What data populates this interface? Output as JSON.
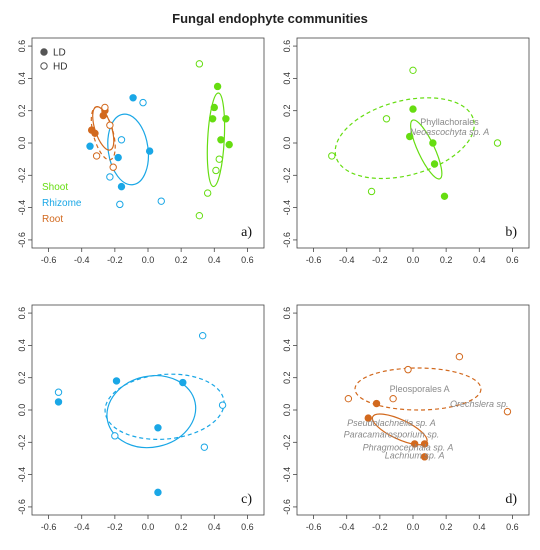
{
  "figure": {
    "title": "Fungal endophyte communities"
  },
  "colors": {
    "shoot": "#66dd11",
    "rhizome": "#1aa7e6",
    "root": "#d2691e",
    "axis": "#444444"
  },
  "chart_data": [
    {
      "type": "scatter",
      "panel_label": "a)",
      "xlim": [
        -0.7,
        0.7
      ],
      "ylim": [
        -0.65,
        0.65
      ],
      "xticks": [
        "-0.6",
        "-0.4",
        "-0.2",
        "0.0",
        "0.2",
        "0.4",
        "0.6"
      ],
      "yticks": [
        "-0.6",
        "-0.4",
        "-0.2",
        "0.0",
        "0.2",
        "0.4",
        "0.6"
      ],
      "legend": {
        "fill_labels": [
          {
            "label": "LD",
            "filled": true
          },
          {
            "label": "HD",
            "filled": false
          }
        ],
        "group_labels": [
          {
            "label": "Shoot",
            "color": "shoot"
          },
          {
            "label": "Rhizome",
            "color": "rhizome"
          },
          {
            "label": "Root",
            "color": "root"
          }
        ]
      },
      "points": [
        {
          "x": 0.42,
          "y": 0.35,
          "g": "shoot",
          "f": true
        },
        {
          "x": 0.4,
          "y": 0.22,
          "g": "shoot",
          "f": true
        },
        {
          "x": 0.47,
          "y": 0.15,
          "g": "shoot",
          "f": true
        },
        {
          "x": 0.44,
          "y": 0.02,
          "g": "shoot",
          "f": true
        },
        {
          "x": 0.49,
          "y": -0.01,
          "g": "shoot",
          "f": true
        },
        {
          "x": 0.39,
          "y": 0.15,
          "g": "shoot",
          "f": true
        },
        {
          "x": 0.31,
          "y": 0.49,
          "g": "shoot",
          "f": false
        },
        {
          "x": 0.43,
          "y": -0.1,
          "g": "shoot",
          "f": false
        },
        {
          "x": 0.41,
          "y": -0.17,
          "g": "shoot",
          "f": false
        },
        {
          "x": 0.36,
          "y": -0.31,
          "g": "shoot",
          "f": false
        },
        {
          "x": 0.31,
          "y": -0.45,
          "g": "shoot",
          "f": false
        },
        {
          "x": -0.09,
          "y": 0.28,
          "g": "rhizome",
          "f": true
        },
        {
          "x": 0.01,
          "y": -0.05,
          "g": "rhizome",
          "f": true
        },
        {
          "x": -0.18,
          "y": -0.09,
          "g": "rhizome",
          "f": true
        },
        {
          "x": -0.16,
          "y": -0.27,
          "g": "rhizome",
          "f": true
        },
        {
          "x": -0.35,
          "y": -0.02,
          "g": "rhizome",
          "f": true
        },
        {
          "x": -0.03,
          "y": 0.25,
          "g": "rhizome",
          "f": false
        },
        {
          "x": -0.16,
          "y": 0.02,
          "g": "rhizome",
          "f": false
        },
        {
          "x": -0.23,
          "y": -0.21,
          "g": "rhizome",
          "f": false
        },
        {
          "x": -0.17,
          "y": -0.38,
          "g": "rhizome",
          "f": false
        },
        {
          "x": 0.08,
          "y": -0.36,
          "g": "rhizome",
          "f": false
        },
        {
          "x": -0.26,
          "y": 0.2,
          "g": "root",
          "f": true
        },
        {
          "x": -0.27,
          "y": 0.17,
          "g": "root",
          "f": true
        },
        {
          "x": -0.34,
          "y": 0.08,
          "g": "root",
          "f": true
        },
        {
          "x": -0.32,
          "y": 0.06,
          "g": "root",
          "f": true
        },
        {
          "x": -0.23,
          "y": 0.11,
          "g": "root",
          "f": false
        },
        {
          "x": -0.26,
          "y": 0.22,
          "g": "root",
          "f": false
        },
        {
          "x": -0.21,
          "y": -0.15,
          "g": "root",
          "f": false
        },
        {
          "x": -0.31,
          "y": -0.08,
          "g": "root",
          "f": false
        }
      ],
      "ellipses": [
        {
          "cx": 0.41,
          "cy": 0.02,
          "rx": 0.05,
          "ry": 0.29,
          "rot": 3,
          "g": "shoot",
          "dashed": false
        },
        {
          "cx": -0.12,
          "cy": -0.04,
          "rx": 0.12,
          "ry": 0.22,
          "rot": -8,
          "g": "rhizome",
          "dashed": false
        },
        {
          "cx": -0.27,
          "cy": 0.09,
          "rx": 0.05,
          "ry": 0.14,
          "rot": -18,
          "g": "root",
          "dashed": false
        },
        {
          "cx": -0.27,
          "cy": 0.06,
          "rx": 0.06,
          "ry": 0.17,
          "rot": -15,
          "g": "root",
          "dashed": true
        }
      ],
      "annotations": []
    },
    {
      "type": "scatter",
      "panel_label": "b)",
      "xlim": [
        -0.7,
        0.7
      ],
      "ylim": [
        -0.65,
        0.65
      ],
      "xticks": [
        "-0.6",
        "-0.4",
        "-0.2",
        "0.0",
        "0.2",
        "0.4",
        "0.6"
      ],
      "yticks": [
        "-0.6",
        "-0.4",
        "-0.2",
        "0.0",
        "0.2",
        "0.4",
        "0.6"
      ],
      "points": [
        {
          "x": 0.0,
          "y": 0.21,
          "g": "shoot",
          "f": true
        },
        {
          "x": -0.02,
          "y": 0.04,
          "g": "shoot",
          "f": true
        },
        {
          "x": 0.12,
          "y": 0.0,
          "g": "shoot",
          "f": true
        },
        {
          "x": 0.13,
          "y": -0.13,
          "g": "shoot",
          "f": true
        },
        {
          "x": 0.19,
          "y": -0.33,
          "g": "shoot",
          "f": true
        },
        {
          "x": 0.0,
          "y": 0.45,
          "g": "shoot",
          "f": false
        },
        {
          "x": -0.16,
          "y": 0.15,
          "g": "shoot",
          "f": false
        },
        {
          "x": -0.49,
          "y": -0.08,
          "g": "shoot",
          "f": false
        },
        {
          "x": -0.25,
          "y": -0.3,
          "g": "shoot",
          "f": false
        },
        {
          "x": 0.51,
          "y": 0.0,
          "g": "shoot",
          "f": false
        }
      ],
      "ellipses": [
        {
          "cx": -0.05,
          "cy": 0.03,
          "rx": 0.43,
          "ry": 0.23,
          "rot": -15,
          "g": "shoot",
          "dashed": true
        },
        {
          "cx": 0.08,
          "cy": -0.04,
          "rx": 0.05,
          "ry": 0.2,
          "rot": -25,
          "g": "shoot",
          "dashed": false
        }
      ],
      "annotations": [
        {
          "text": "Phyllachorales",
          "x": 0.22,
          "y": 0.11,
          "italic": false
        },
        {
          "text": "Neoascochyta sp. A",
          "x": 0.22,
          "y": 0.05,
          "italic": true
        }
      ]
    },
    {
      "type": "scatter",
      "panel_label": "c)",
      "xlim": [
        -0.7,
        0.7
      ],
      "ylim": [
        -0.65,
        0.65
      ],
      "xticks": [
        "-0.6",
        "-0.4",
        "-0.2",
        "0.0",
        "0.2",
        "0.4",
        "0.6"
      ],
      "yticks": [
        "-0.6",
        "-0.4",
        "-0.2",
        "0.0",
        "0.2",
        "0.4",
        "0.6"
      ],
      "points": [
        {
          "x": -0.19,
          "y": 0.18,
          "g": "rhizome",
          "f": true
        },
        {
          "x": 0.21,
          "y": 0.17,
          "g": "rhizome",
          "f": true
        },
        {
          "x": 0.06,
          "y": -0.11,
          "g": "rhizome",
          "f": true
        },
        {
          "x": -0.54,
          "y": 0.05,
          "g": "rhizome",
          "f": true
        },
        {
          "x": 0.06,
          "y": -0.51,
          "g": "rhizome",
          "f": true
        },
        {
          "x": 0.33,
          "y": 0.46,
          "g": "rhizome",
          "f": false
        },
        {
          "x": -0.54,
          "y": 0.11,
          "g": "rhizome",
          "f": false
        },
        {
          "x": 0.45,
          "y": 0.03,
          "g": "rhizome",
          "f": false
        },
        {
          "x": -0.2,
          "y": -0.16,
          "g": "rhizome",
          "f": false
        },
        {
          "x": 0.34,
          "y": -0.23,
          "g": "rhizome",
          "f": false
        }
      ],
      "ellipses": [
        {
          "cx": 0.02,
          "cy": -0.01,
          "rx": 0.27,
          "ry": 0.22,
          "rot": -12,
          "g": "rhizome",
          "dashed": false
        },
        {
          "cx": 0.1,
          "cy": 0.02,
          "rx": 0.36,
          "ry": 0.2,
          "rot": -5,
          "g": "rhizome",
          "dashed": true
        }
      ],
      "annotations": []
    },
    {
      "type": "scatter",
      "panel_label": "d)",
      "xlim": [
        -0.7,
        0.7
      ],
      "ylim": [
        -0.65,
        0.65
      ],
      "xticks": [
        "-0.6",
        "-0.4",
        "-0.2",
        "0.0",
        "0.2",
        "0.4",
        "0.6"
      ],
      "yticks": [
        "-0.6",
        "-0.4",
        "-0.2",
        "0.0",
        "0.2",
        "0.4",
        "0.6"
      ],
      "points": [
        {
          "x": -0.22,
          "y": 0.04,
          "g": "root",
          "f": true
        },
        {
          "x": -0.27,
          "y": -0.05,
          "g": "root",
          "f": true
        },
        {
          "x": 0.01,
          "y": -0.21,
          "g": "root",
          "f": true
        },
        {
          "x": 0.07,
          "y": -0.21,
          "g": "root",
          "f": true
        },
        {
          "x": 0.07,
          "y": -0.29,
          "g": "root",
          "f": true
        },
        {
          "x": -0.39,
          "y": 0.07,
          "g": "root",
          "f": false
        },
        {
          "x": -0.12,
          "y": 0.07,
          "g": "root",
          "f": false
        },
        {
          "x": -0.03,
          "y": 0.25,
          "g": "root",
          "f": false
        },
        {
          "x": 0.28,
          "y": 0.33,
          "g": "root",
          "f": false
        },
        {
          "x": 0.57,
          "y": -0.01,
          "g": "root",
          "f": false
        }
      ],
      "ellipses": [
        {
          "cx": 0.03,
          "cy": 0.13,
          "rx": 0.38,
          "ry": 0.13,
          "rot": 0,
          "g": "root",
          "dashed": true
        },
        {
          "cx": -0.08,
          "cy": -0.12,
          "rx": 0.18,
          "ry": 0.06,
          "rot": 25,
          "g": "root",
          "dashed": false
        }
      ],
      "annotations": [
        {
          "text": "Pleosporales A",
          "x": 0.04,
          "y": 0.11,
          "italic": false
        },
        {
          "text": "Orechslera sp.",
          "x": 0.4,
          "y": 0.02,
          "italic": true
        },
        {
          "text": "Pseudolachnella sp. A",
          "x": -0.13,
          "y": -0.1,
          "italic": true
        },
        {
          "text": "Paracamarosporium sp.",
          "x": -0.13,
          "y": -0.17,
          "italic": true
        },
        {
          "text": "Phragmocephala sp. A",
          "x": -0.03,
          "y": -0.25,
          "italic": true
        },
        {
          "text": "Lachnum sp. A",
          "x": 0.01,
          "y": -0.3,
          "italic": true
        }
      ]
    }
  ]
}
